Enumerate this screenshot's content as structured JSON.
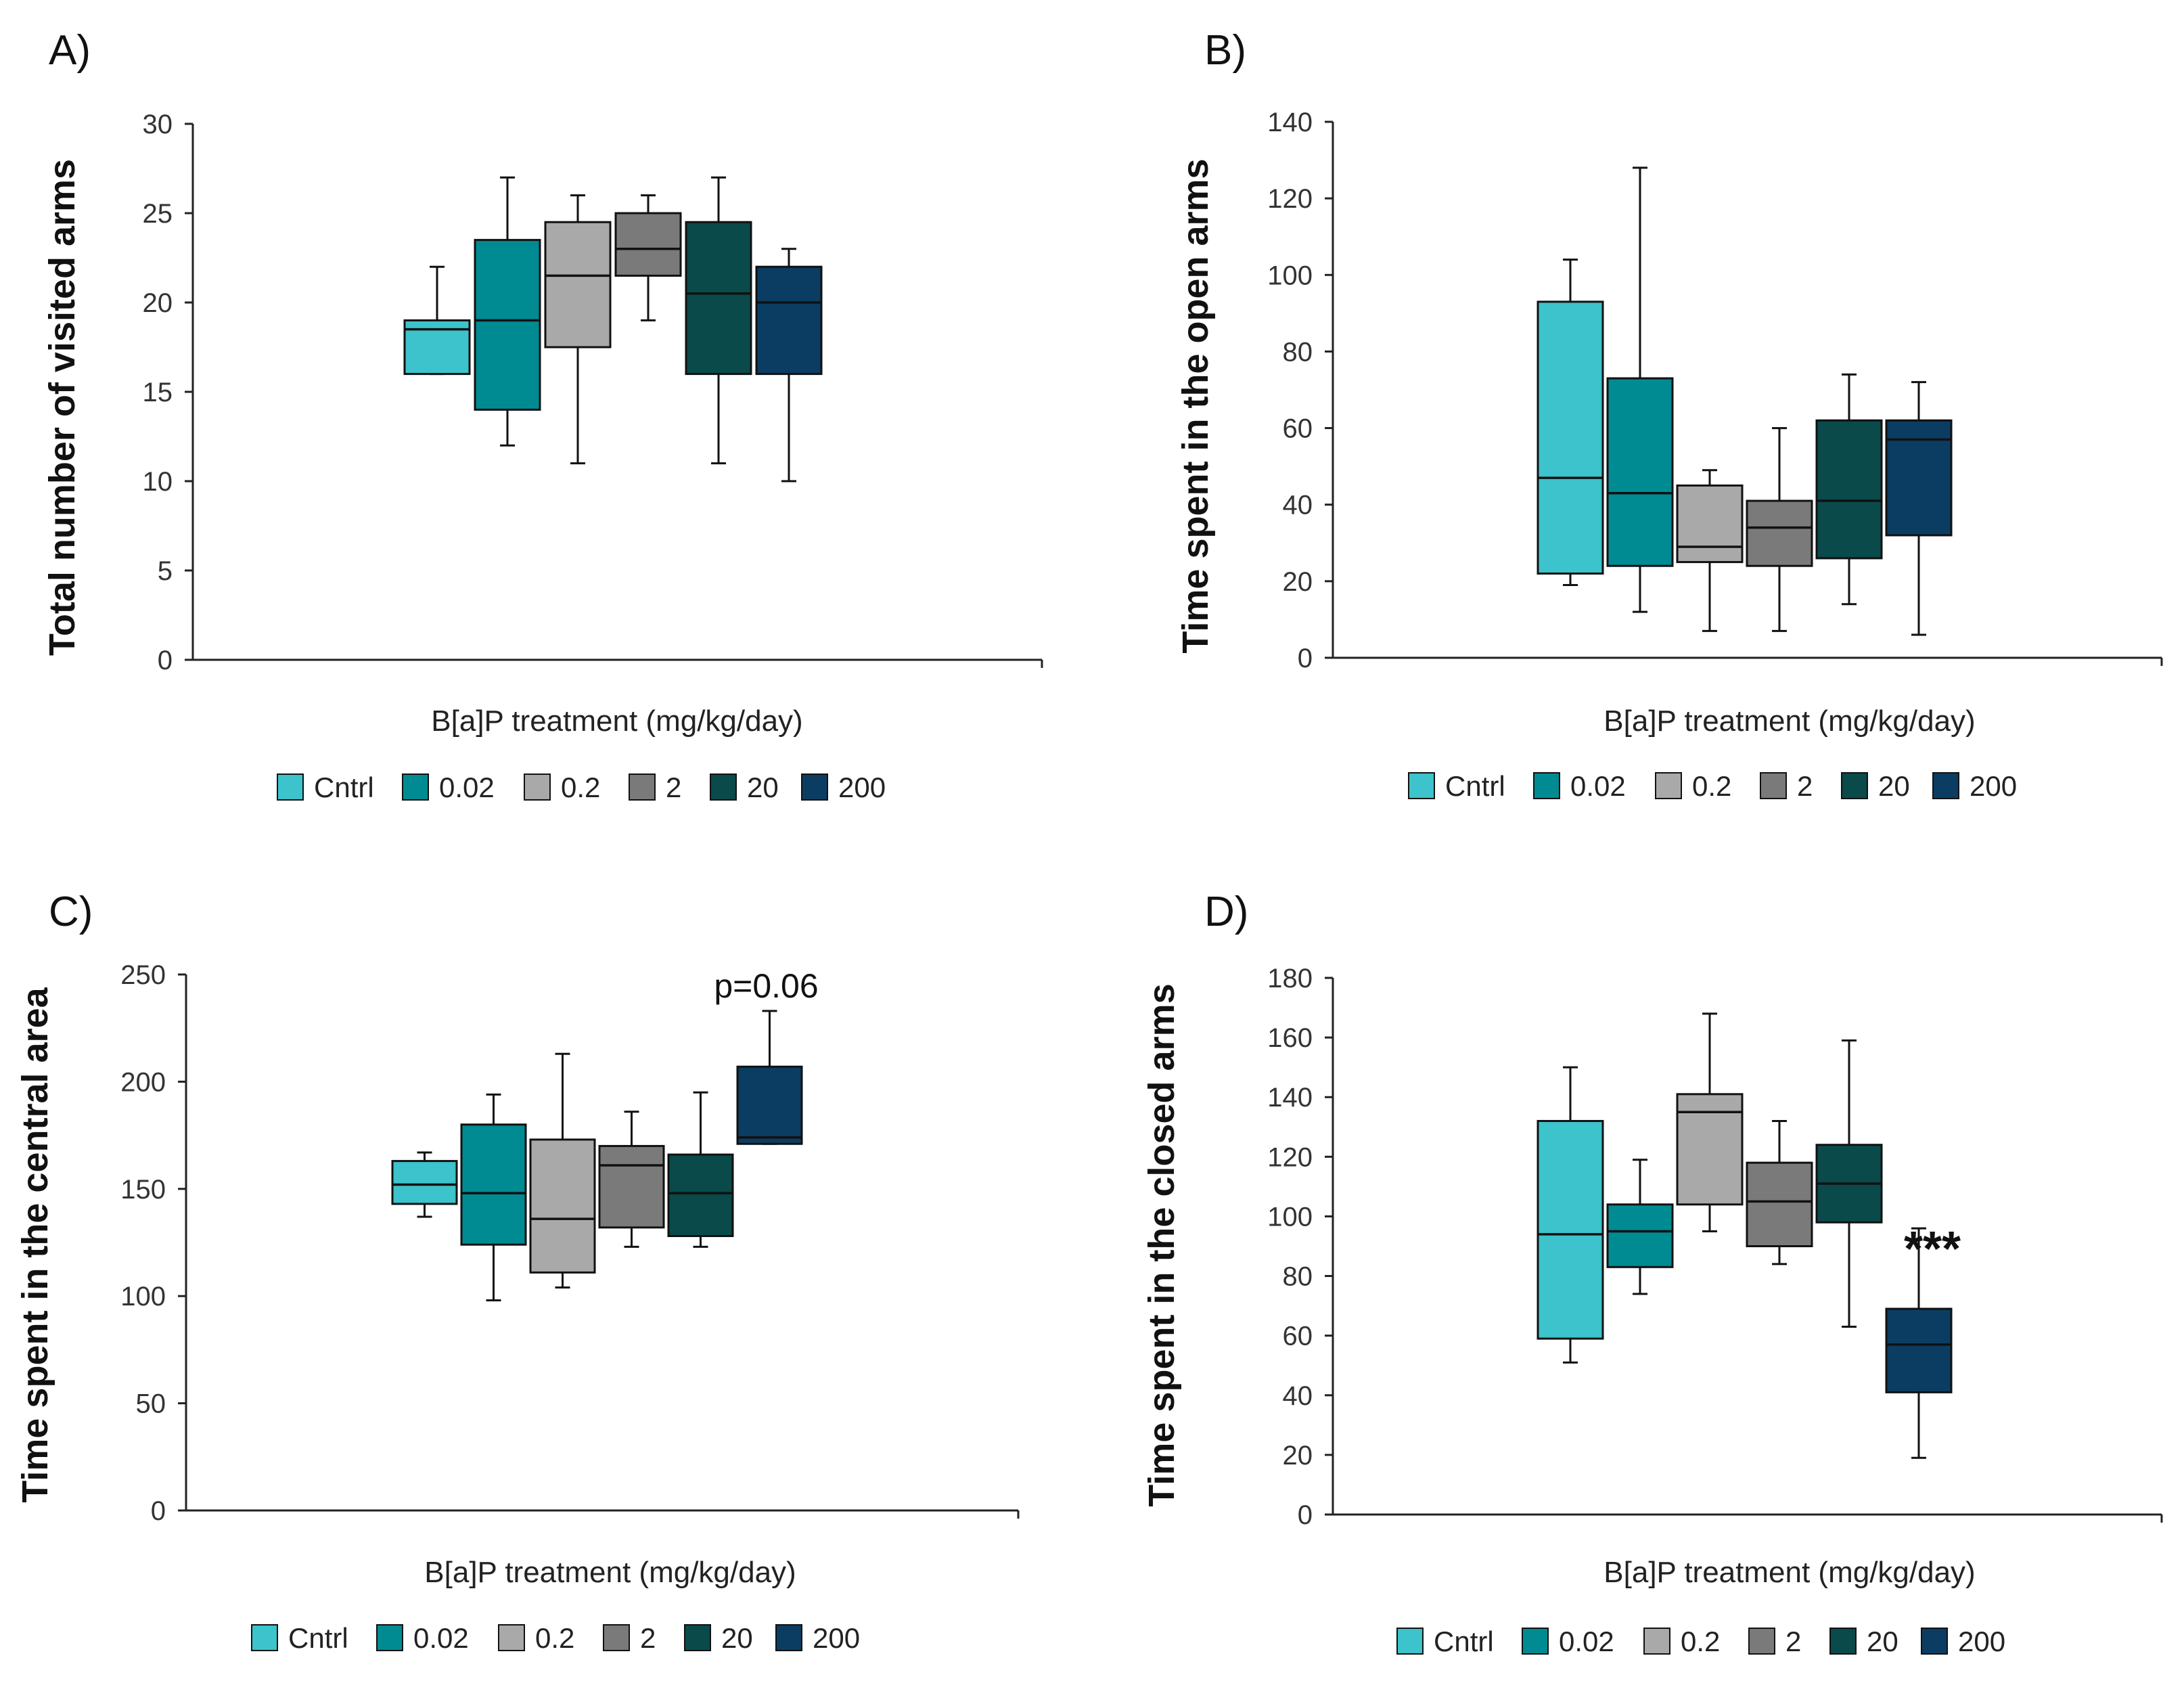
{
  "legend_colors": {
    "Cntrl": "#3cc3cb",
    "0.02": "#008b93",
    "0.2": "#a9a9a9",
    "2": "#7a7a7a",
    "20": "#0a4a4a",
    "200": "#0b3d62"
  },
  "chart_data": [
    {
      "id": "A",
      "panel_label": "A)",
      "type": "box",
      "title": "",
      "xlabel": "B[a]P treatment (mg/kg/day)",
      "ylabel": "Total number of visited arms",
      "ylim": [
        0,
        30
      ],
      "yticks": [
        0,
        5,
        10,
        15,
        20,
        25,
        30
      ],
      "categories": [
        "Cntrl",
        "0.02",
        "0.2",
        "2",
        "20",
        "200"
      ],
      "boxes": [
        {
          "name": "Cntrl",
          "min": 16,
          "q1": 16,
          "median": 18.5,
          "q3": 19,
          "max": 22
        },
        {
          "name": "0.02",
          "min": 12,
          "q1": 14,
          "median": 19,
          "q3": 23.5,
          "max": 27
        },
        {
          "name": "0.2",
          "min": 11,
          "q1": 17.5,
          "median": 21.5,
          "q3": 24.5,
          "max": 26
        },
        {
          "name": "2",
          "min": 19,
          "q1": 21.5,
          "median": 23,
          "q3": 25,
          "max": 26
        },
        {
          "name": "20",
          "min": 11,
          "q1": 16,
          "median": 20.5,
          "q3": 24.5,
          "max": 27
        },
        {
          "name": "200",
          "min": 10,
          "q1": 16,
          "median": 20,
          "q3": 22,
          "max": 23
        }
      ],
      "annotation": "",
      "legend": [
        "Cntrl",
        "0.02",
        "0.2",
        "2",
        "20",
        "200"
      ]
    },
    {
      "id": "B",
      "panel_label": "B)",
      "type": "box",
      "title": "",
      "xlabel": "B[a]P treatment (mg/kg/day)",
      "ylabel": "Time spent in the open arms",
      "ylim": [
        0,
        140
      ],
      "yticks": [
        0,
        20,
        40,
        60,
        80,
        100,
        120,
        140
      ],
      "categories": [
        "Cntrl",
        "0.02",
        "0.2",
        "2",
        "20",
        "200"
      ],
      "boxes": [
        {
          "name": "Cntrl",
          "min": 19,
          "q1": 22,
          "median": 47,
          "q3": 93,
          "max": 104
        },
        {
          "name": "0.02",
          "min": 12,
          "q1": 24,
          "median": 43,
          "q3": 73,
          "max": 128
        },
        {
          "name": "0.2",
          "min": 7,
          "q1": 25,
          "median": 29,
          "q3": 45,
          "max": 49
        },
        {
          "name": "2",
          "min": 7,
          "q1": 24,
          "median": 34,
          "q3": 41,
          "max": 60
        },
        {
          "name": "20",
          "min": 14,
          "q1": 26,
          "median": 41,
          "q3": 62,
          "max": 74
        },
        {
          "name": "200",
          "min": 6,
          "q1": 32,
          "median": 57,
          "q3": 62,
          "max": 72
        }
      ],
      "annotation": "",
      "legend": [
        "Cntrl",
        "0.02",
        "0.2",
        "2",
        "20",
        "200"
      ]
    },
    {
      "id": "C",
      "panel_label": "C)",
      "type": "box",
      "title": "",
      "xlabel": "B[a]P treatment (mg/kg/day)",
      "ylabel": "Time spent in the central area",
      "ylim": [
        0,
        250
      ],
      "yticks": [
        0,
        50,
        100,
        150,
        200,
        250
      ],
      "categories": [
        "Cntrl",
        "0.02",
        "0.2",
        "2",
        "20",
        "200"
      ],
      "boxes": [
        {
          "name": "Cntrl",
          "min": 137,
          "q1": 143,
          "median": 152,
          "q3": 163,
          "max": 167
        },
        {
          "name": "0.02",
          "min": 98,
          "q1": 124,
          "median": 148,
          "q3": 180,
          "max": 194
        },
        {
          "name": "0.2",
          "min": 104,
          "q1": 111,
          "median": 136,
          "q3": 173,
          "max": 213
        },
        {
          "name": "2",
          "min": 123,
          "q1": 132,
          "median": 161,
          "q3": 170,
          "max": 186
        },
        {
          "name": "20",
          "min": 123,
          "q1": 128,
          "median": 148,
          "q3": 166,
          "max": 195
        },
        {
          "name": "200",
          "min": 171,
          "q1": 171,
          "median": 174,
          "q3": 207,
          "max": 233
        }
      ],
      "annotation": "p=0.06",
      "legend": [
        "Cntrl",
        "0.02",
        "0.2",
        "2",
        "20",
        "200"
      ]
    },
    {
      "id": "D",
      "panel_label": "D)",
      "type": "box",
      "title": "",
      "xlabel": "B[a]P treatment (mg/kg/day)",
      "ylabel": "Time spent in the closed arms",
      "ylim": [
        0,
        180
      ],
      "yticks": [
        0,
        20,
        40,
        60,
        80,
        100,
        120,
        140,
        160,
        180
      ],
      "categories": [
        "Cntrl",
        "0.02",
        "0.2",
        "2",
        "20",
        "200"
      ],
      "boxes": [
        {
          "name": "Cntrl",
          "min": 51,
          "q1": 59,
          "median": 94,
          "q3": 132,
          "max": 150
        },
        {
          "name": "0.02",
          "min": 74,
          "q1": 83,
          "median": 95,
          "q3": 104,
          "max": 119
        },
        {
          "name": "0.2",
          "min": 95,
          "q1": 104,
          "median": 135,
          "q3": 141,
          "max": 168
        },
        {
          "name": "2",
          "min": 84,
          "q1": 90,
          "median": 105,
          "q3": 118,
          "max": 132
        },
        {
          "name": "20",
          "min": 63,
          "q1": 98,
          "median": 111,
          "q3": 124,
          "max": 159
        },
        {
          "name": "200",
          "min": 19,
          "q1": 41,
          "median": 57,
          "q3": 69,
          "max": 96
        }
      ],
      "annotation": "***",
      "legend": [
        "Cntrl",
        "0.02",
        "0.2",
        "2",
        "20",
        "200"
      ]
    }
  ]
}
